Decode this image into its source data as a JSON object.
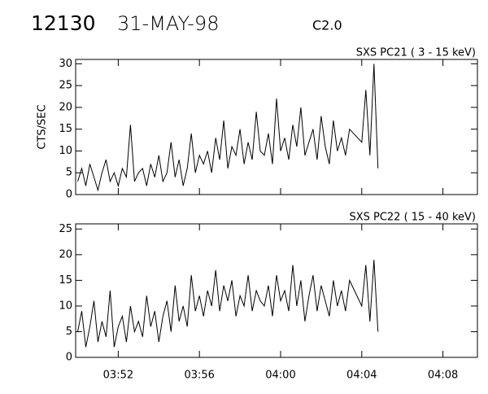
{
  "header": {
    "id": "12130",
    "date": "31-MAY-98",
    "class": "C2.0"
  },
  "chart_data": [
    {
      "type": "line",
      "title": "SXS PC21  (  3 - 15 keV)",
      "y_label": "CTS/SEC",
      "color": "#000000",
      "xlim": [
        229.9,
        249.7
      ],
      "xticks": [
        232,
        236,
        240,
        244,
        248
      ],
      "ylim": [
        0,
        31
      ],
      "yticks": [
        0,
        5,
        10,
        15,
        20,
        25,
        30
      ],
      "x": [
        230.0,
        230.2,
        230.4,
        230.6,
        230.8,
        231.0,
        231.2,
        231.4,
        231.6,
        231.8,
        232.0,
        232.2,
        232.4,
        232.6,
        232.8,
        233.0,
        233.2,
        233.4,
        233.6,
        233.8,
        234.0,
        234.2,
        234.4,
        234.6,
        234.8,
        235.0,
        235.2,
        235.4,
        235.6,
        235.8,
        236.0,
        236.2,
        236.4,
        236.6,
        236.8,
        237.0,
        237.2,
        237.4,
        237.6,
        237.8,
        238.0,
        238.2,
        238.4,
        238.6,
        238.8,
        239.0,
        239.2,
        239.4,
        239.6,
        239.8,
        240.0,
        240.2,
        240.4,
        240.6,
        240.8,
        241.0,
        241.2,
        241.4,
        241.6,
        241.8,
        242.0,
        242.2,
        242.4,
        242.6,
        242.8,
        243.0,
        243.2,
        243.4,
        244.0,
        244.2,
        244.4,
        244.6,
        244.8
      ],
      "values": [
        3,
        6,
        2,
        7,
        4,
        1,
        5,
        8,
        3,
        5,
        2,
        6,
        4,
        16,
        3,
        5,
        6,
        2,
        7,
        4,
        9,
        3,
        5,
        12,
        4,
        8,
        2,
        6,
        14,
        5,
        9,
        7,
        10,
        5,
        13,
        8,
        17,
        6,
        11,
        9,
        15,
        7,
        12,
        8,
        19,
        10,
        9,
        14,
        7,
        22,
        10,
        13,
        8,
        16,
        11,
        20,
        9,
        12,
        15,
        8,
        18,
        11,
        7,
        17,
        10,
        13,
        9,
        15,
        12,
        24,
        9,
        30,
        6
      ]
    },
    {
      "type": "line",
      "title": "SXS PC22  ( 15 - 40 keV)",
      "color": "#000000",
      "xlim": [
        229.9,
        249.7
      ],
      "xticks": [
        {
          "value": 232,
          "label": "03:52"
        },
        {
          "value": 236,
          "label": "03:56"
        },
        {
          "value": 240,
          "label": "04:00"
        },
        {
          "value": 244,
          "label": "04:04"
        },
        {
          "value": 248,
          "label": "04:08"
        }
      ],
      "ylim": [
        0,
        26
      ],
      "yticks": [
        0,
        5,
        10,
        15,
        20,
        25
      ],
      "x": [
        230.0,
        230.2,
        230.4,
        230.6,
        230.8,
        231.0,
        231.2,
        231.4,
        231.6,
        231.8,
        232.0,
        232.2,
        232.4,
        232.6,
        232.8,
        233.0,
        233.2,
        233.4,
        233.6,
        233.8,
        234.0,
        234.2,
        234.4,
        234.6,
        234.8,
        235.0,
        235.2,
        235.4,
        235.6,
        235.8,
        236.0,
        236.2,
        236.4,
        236.6,
        236.8,
        237.0,
        237.2,
        237.4,
        237.6,
        237.8,
        238.0,
        238.2,
        238.4,
        238.6,
        238.8,
        239.0,
        239.2,
        239.4,
        239.6,
        239.8,
        240.0,
        240.2,
        240.4,
        240.6,
        240.8,
        241.0,
        241.2,
        241.4,
        241.6,
        241.8,
        242.0,
        242.2,
        242.4,
        242.6,
        242.8,
        243.0,
        243.2,
        243.4,
        244.0,
        244.2,
        244.4,
        244.6,
        244.8
      ],
      "values": [
        5,
        9,
        2,
        6,
        11,
        3,
        7,
        4,
        13,
        2,
        6,
        8,
        3,
        10,
        5,
        7,
        4,
        12,
        6,
        9,
        3,
        8,
        11,
        5,
        14,
        7,
        10,
        6,
        16,
        9,
        12,
        8,
        13,
        10,
        17,
        9,
        14,
        11,
        15,
        8,
        12,
        10,
        16,
        9,
        13,
        11,
        10,
        14,
        8,
        16,
        11,
        13,
        9,
        18,
        10,
        15,
        7,
        12,
        16,
        9,
        14,
        11,
        8,
        15,
        10,
        13,
        9,
        15,
        10,
        18,
        7,
        19,
        5
      ]
    }
  ]
}
